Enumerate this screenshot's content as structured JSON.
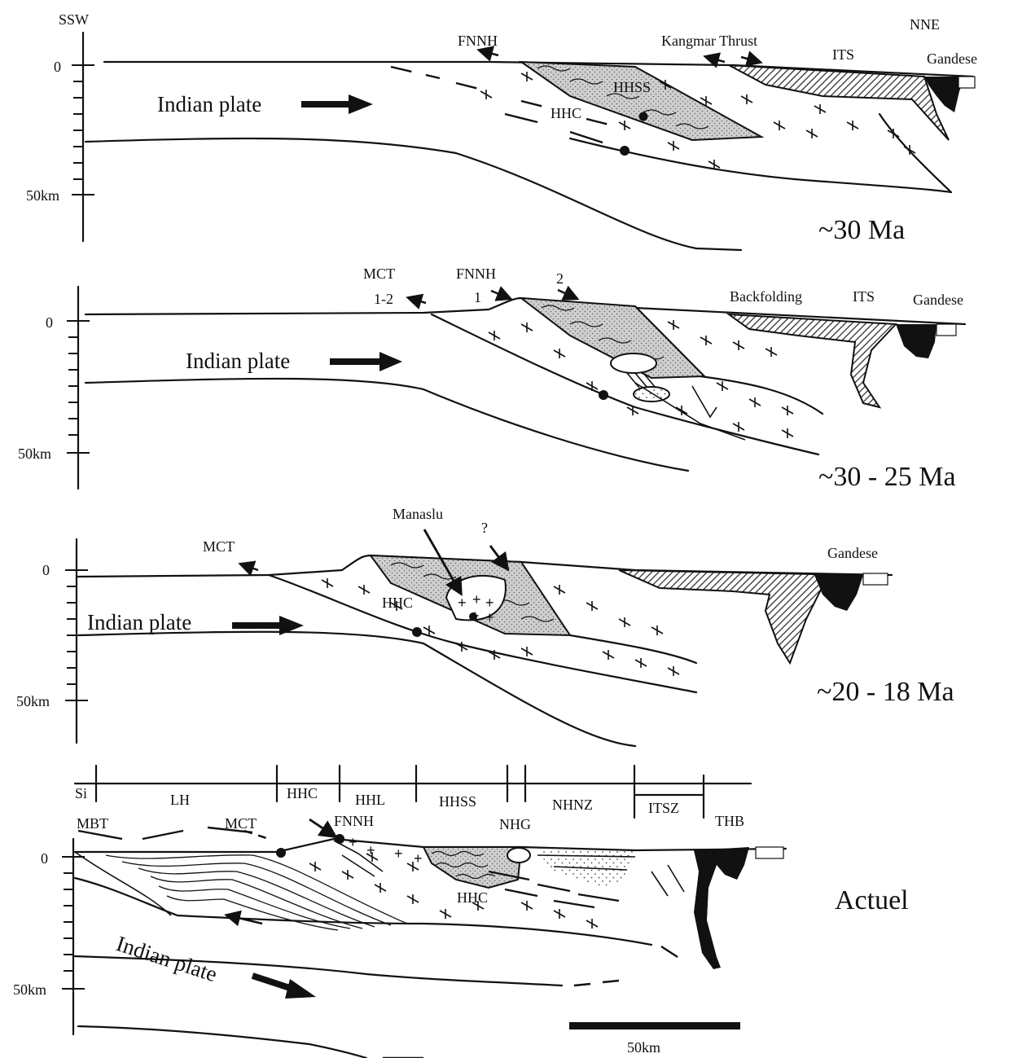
{
  "orientation": {
    "left": "SSW",
    "right": "NNE"
  },
  "axis": {
    "top_tick": "0",
    "depth_tick": "50km"
  },
  "panels": [
    {
      "id": "p1",
      "age": "~30 Ma",
      "plate_label": "Indian plate",
      "labels": {
        "fnnh": "FNNH",
        "kangmar": "Kangmar Thrust",
        "its": "ITS",
        "gandese": "Gandese",
        "hhss": "HHSS",
        "hhc": "HHC"
      }
    },
    {
      "id": "p2",
      "age": "~30  - 25 Ma",
      "plate_label": "Indian plate",
      "labels": {
        "mct": "MCT",
        "mct_num": "1-2",
        "fnnh": "FNNH",
        "fnnh_num": "1",
        "num2": "2",
        "backfolding": "Backfolding",
        "its": "ITS",
        "gandese": "Gandese"
      }
    },
    {
      "id": "p3",
      "age": "~20 - 18 Ma",
      "plate_label": "Indian plate",
      "labels": {
        "mct": "MCT",
        "manaslu": "Manaslu",
        "question": "?",
        "hhc": "HHC",
        "gandese": "Gandese"
      }
    },
    {
      "id": "p4",
      "age": "Actuel",
      "plate_label": "Indian plate",
      "zones": [
        "Si",
        "LH",
        "HHC",
        "HHL",
        "HHSS",
        "NHG",
        "NHNZ",
        "ITSZ",
        "THB"
      ],
      "labels": {
        "mbt": "MBT",
        "mct": "MCT",
        "fnnh": "FNNH",
        "hhc": "HHC"
      }
    }
  ],
  "scale_bar": {
    "label": "50km"
  }
}
